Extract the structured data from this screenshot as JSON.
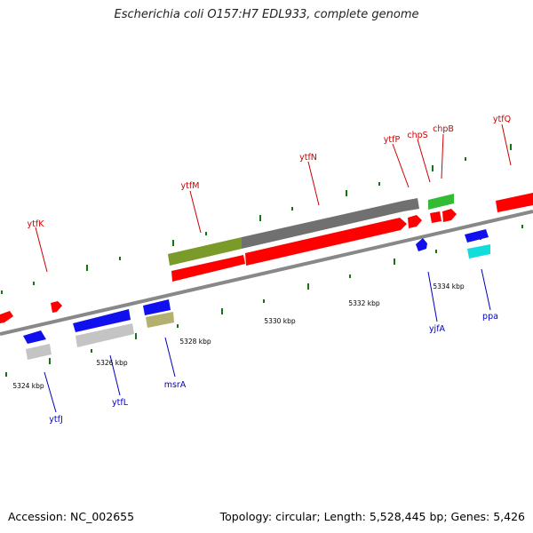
{
  "title": "Escherichia coli O157:H7 EDL933, complete genome",
  "footer": {
    "accession": "Accession: NC_002655",
    "summary": "Topology: circular; Length: 5,528,445 bp; Genes: 5,426"
  },
  "scale_labels": [
    "5324 kbp",
    "5326 kbp",
    "5328 kbp",
    "5330 kbp",
    "5332 kbp",
    "5334 kbp"
  ],
  "upper_labels": [
    "ytfK",
    "ytfM",
    "ytfN",
    "ytfP",
    "chpS",
    "chpB",
    "ytfQ"
  ],
  "lower_labels": [
    "ytfJ",
    "ytfL",
    "msrA",
    "yjfA",
    "ppa"
  ],
  "colors": {
    "forward_cds": "#ff0000",
    "reverse_cds": "#1010ee",
    "backbone": "#888888",
    "upper_label": "#cc0000",
    "lower_label": "#0000bb",
    "tick": "#117711",
    "olive": "#7a9a2a",
    "gray_feature": "#707070",
    "green_feature": "#33bb33",
    "light_gray_feature": "#c4c4c4",
    "khaki_feature": "#b4b070",
    "cyan_feature": "#11dddd"
  }
}
